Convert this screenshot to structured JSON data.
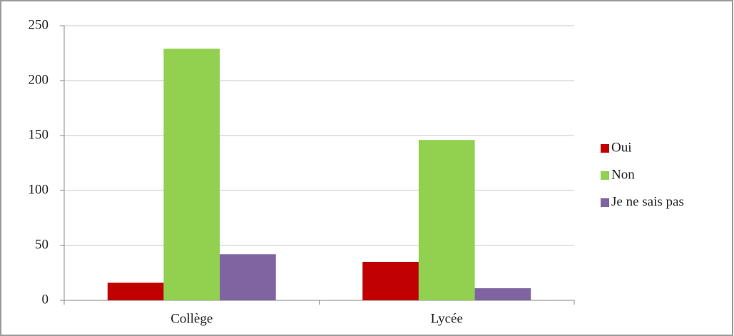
{
  "chart_data": {
    "type": "bar",
    "categories": [
      "Collège",
      "Lycée"
    ],
    "series": [
      {
        "name": "Oui",
        "color": "#c00000",
        "values": [
          16,
          35
        ]
      },
      {
        "name": "Non",
        "color": "#92d050",
        "values": [
          229,
          146
        ]
      },
      {
        "name": "Je ne sais pas",
        "color": "#8064a2",
        "values": [
          42,
          11
        ]
      }
    ],
    "ylim": [
      0,
      250
    ],
    "yticks": [
      0,
      50,
      100,
      150,
      200,
      250
    ],
    "grid": true,
    "legend": "right"
  }
}
